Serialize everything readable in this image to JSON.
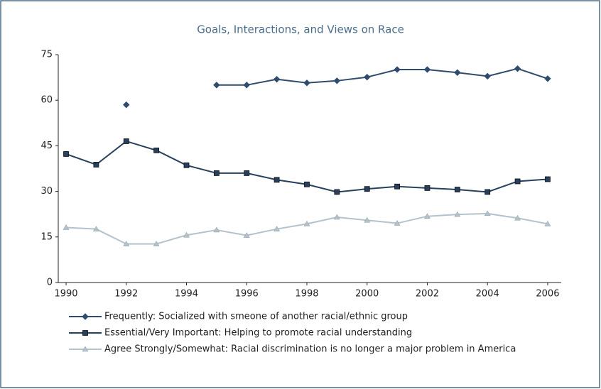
{
  "chart_data": {
    "type": "line",
    "title": "Goals, Interactions, and Views on Race",
    "x": [
      1990,
      1991,
      1992,
      1993,
      1994,
      1995,
      1996,
      1997,
      1998,
      1999,
      2000,
      2001,
      2002,
      2003,
      2004,
      2005,
      2006
    ],
    "series": [
      {
        "name": "Frequently: Socialized with smeone of another racial/ethnic group",
        "color": "#2f4b6e",
        "marker": "diamond",
        "values": [
          null,
          null,
          58.5,
          null,
          null,
          65.0,
          65.0,
          66.9,
          65.7,
          66.4,
          67.6,
          70.1,
          70.1,
          69.1,
          67.9,
          70.4,
          67.1
        ]
      },
      {
        "name": "Essential/Very Important: Helping to promote racial understanding",
        "color": "#27405e",
        "marker": "square",
        "values": [
          42.3,
          38.8,
          46.5,
          43.5,
          38.6,
          36.0,
          36.0,
          33.8,
          32.3,
          29.8,
          30.8,
          31.6,
          31.1,
          30.6,
          29.8,
          33.3,
          34.0
        ]
      },
      {
        "name": "Agree Strongly/Somewhat: Racial discrimination is no longer a major problem in America",
        "color": "#b3c2cc",
        "marker": "triangle",
        "values": [
          18.1,
          17.6,
          12.7,
          12.7,
          15.6,
          17.3,
          15.5,
          17.6,
          19.3,
          21.5,
          20.5,
          19.5,
          21.8,
          22.4,
          22.7,
          21.2,
          19.3
        ]
      }
    ],
    "xlim": [
      1989.74,
      2006.45
    ],
    "xticks": [
      1990,
      1992,
      1994,
      1996,
      1998,
      2000,
      2002,
      2004,
      2006
    ],
    "ylim": [
      0,
      75
    ],
    "yticks": [
      0,
      15,
      30,
      45,
      60,
      75
    ],
    "grid": false
  }
}
